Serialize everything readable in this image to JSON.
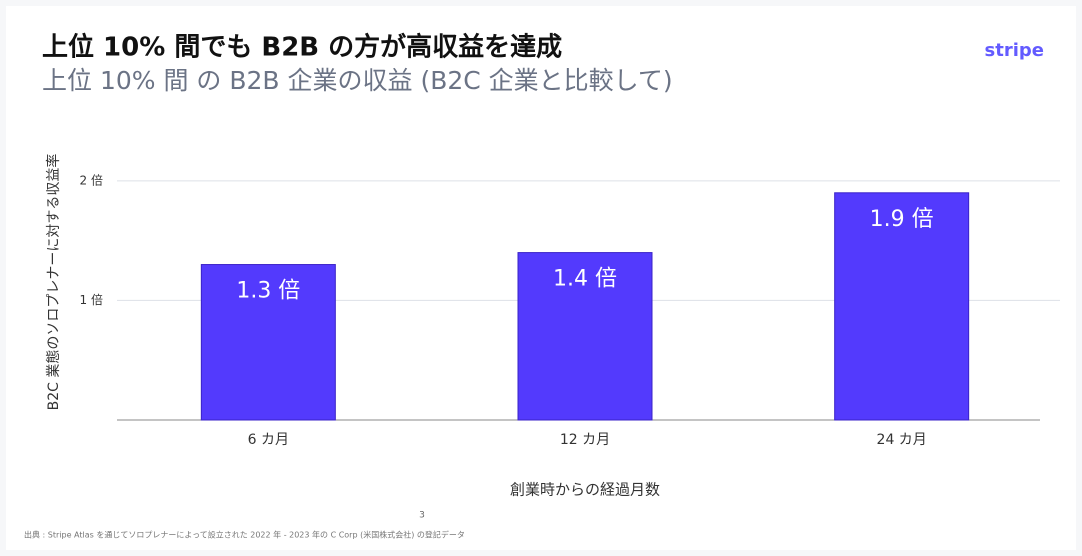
{
  "chart_data": {
    "type": "bar",
    "title": "上位 10% 間でも B2B の方が高収益を達成",
    "subtitle": "上位 10% 間 の B2B 企業の収益 (B2C 企業と比較して)",
    "brand": "stripe",
    "y_label": "B2C 業態のソロプレナーに対する収益率",
    "x_label": "創業時からの経過月数",
    "footnote_mark": "3",
    "source": "出典 : Stripe Atlas を通じてソロプレナーによって設立された 2022 年 - 2023 年の C Corp (米国株式会社) の登記データ",
    "categories": [
      "6 カ月",
      "12 カ月",
      "24 カ月"
    ],
    "values": [
      1.3,
      1.4,
      1.9
    ],
    "value_labels": [
      "1.3 倍",
      "1.4 倍",
      "1.9 倍"
    ],
    "color": "#533afd",
    "ylim": [
      0,
      2.4
    ],
    "yticks": [
      {
        "value": 1,
        "label": "1 倍"
      },
      {
        "value": 2,
        "label": "2 倍"
      }
    ],
    "grid": true
  }
}
